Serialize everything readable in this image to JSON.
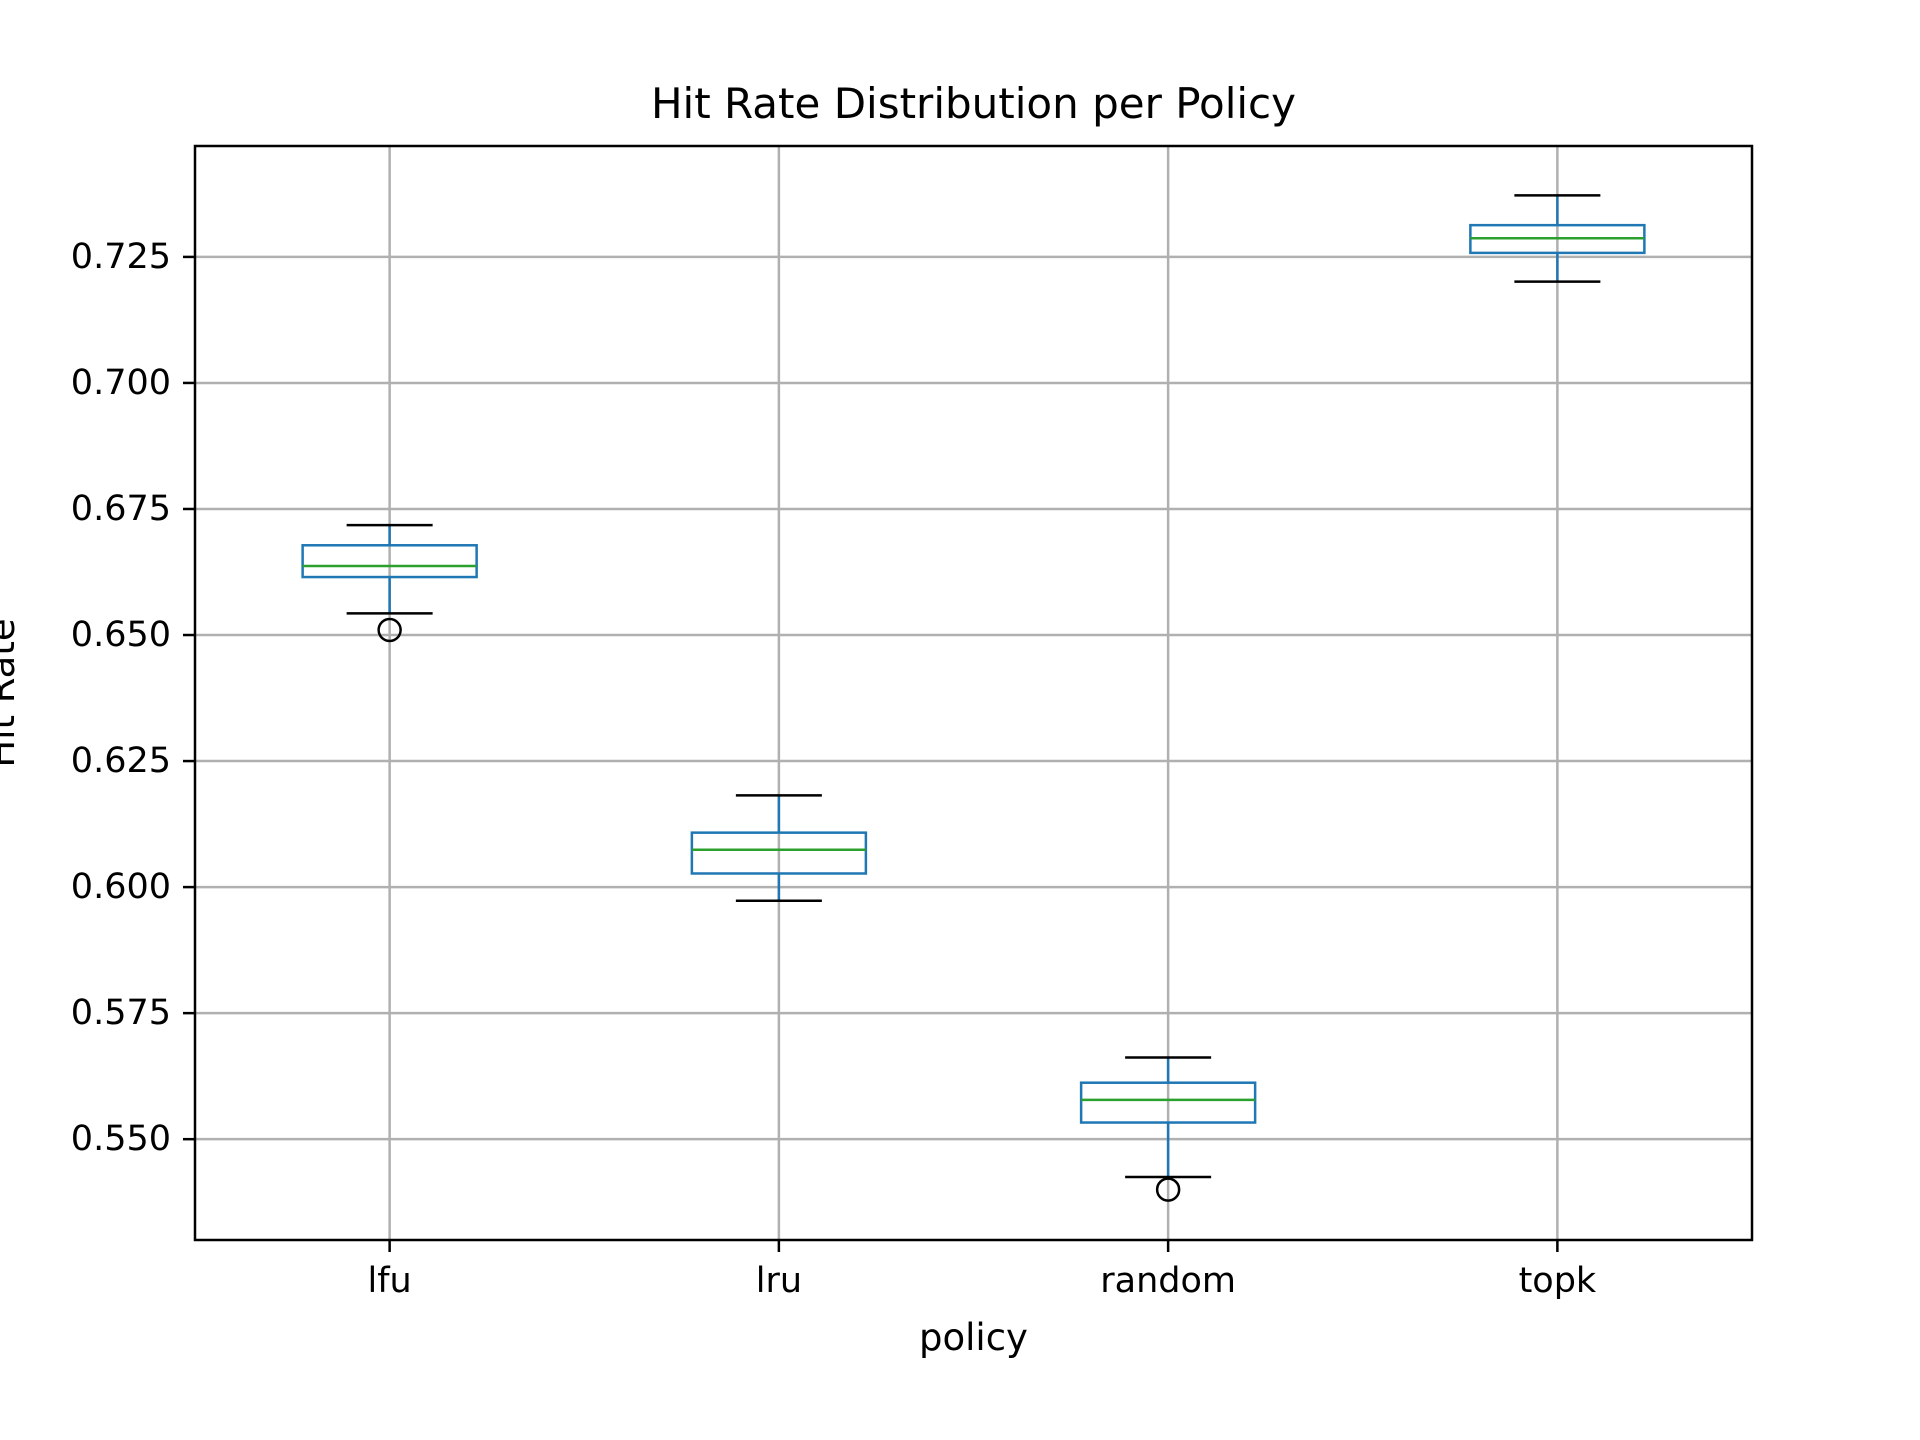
{
  "chart_data": {
    "type": "boxplot",
    "title": "Hit Rate Distribution per Policy",
    "xlabel": "policy",
    "ylabel": "Hit Rate",
    "categories": [
      "lfu",
      "lru",
      "random",
      "topk"
    ],
    "ylim": [
      0.53,
      0.747
    ],
    "yticks": [
      "0.550",
      "0.575",
      "0.600",
      "0.625",
      "0.650",
      "0.675",
      "0.700",
      "0.725"
    ],
    "grid": true,
    "boxes": [
      {
        "category": "lfu",
        "whisker_low": 0.6543,
        "q1": 0.6615,
        "median": 0.6637,
        "q3": 0.6678,
        "whisker_high": 0.6718,
        "outliers": [
          0.651
        ]
      },
      {
        "category": "lru",
        "whisker_low": 0.5973,
        "q1": 0.6027,
        "median": 0.6074,
        "q3": 0.6108,
        "whisker_high": 0.6182,
        "outliers": []
      },
      {
        "category": "random",
        "whisker_low": 0.5425,
        "q1": 0.5533,
        "median": 0.5578,
        "q3": 0.5612,
        "whisker_high": 0.5662,
        "outliers": [
          0.54
        ]
      },
      {
        "category": "topk",
        "whisker_low": 0.7201,
        "q1": 0.7258,
        "median": 0.7287,
        "q3": 0.7313,
        "whisker_high": 0.7372,
        "outliers": []
      }
    ],
    "colors": {
      "box": "#1f77b4",
      "median": "#2ca02c",
      "whisker_cap": "#000000",
      "grid": "#b0b0b0",
      "outlier": "#000000"
    }
  }
}
